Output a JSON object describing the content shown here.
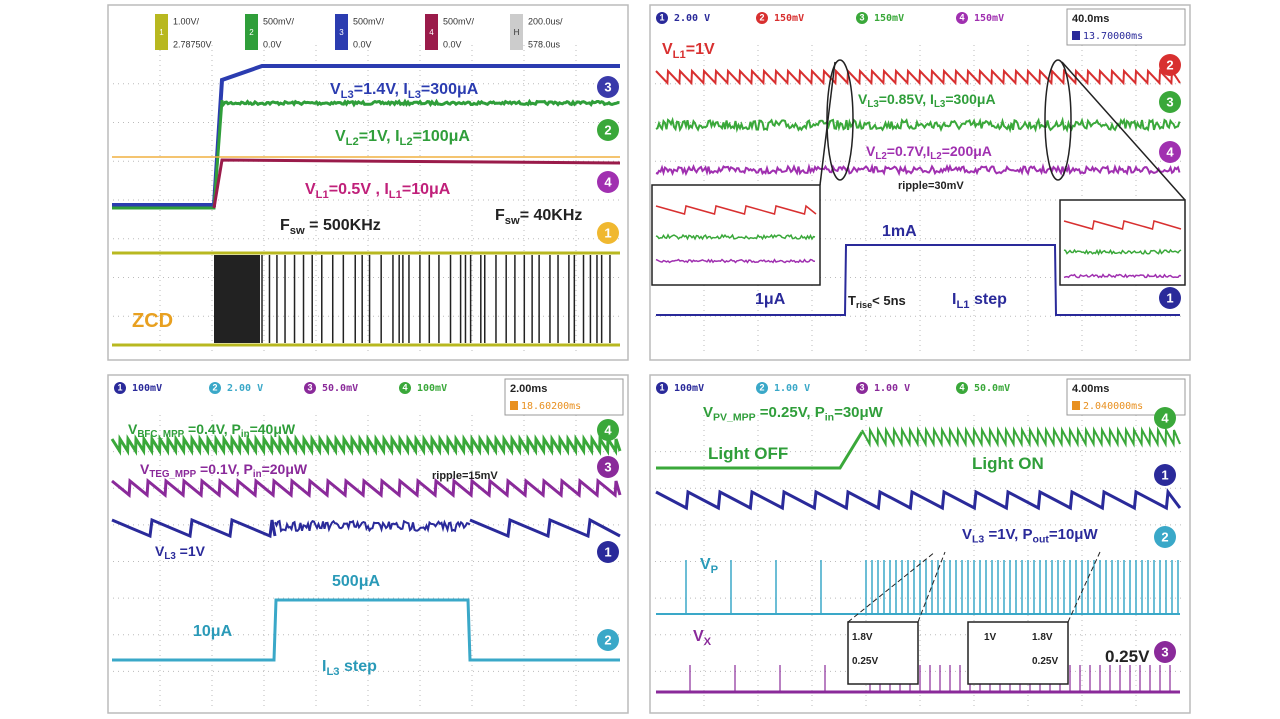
{
  "panels": [
    {
      "channels": [
        {
          "id": "1",
          "scale": "1.00V/",
          "offset": "2.78750V",
          "color": "#b8b820"
        },
        {
          "id": "2",
          "scale": "500mV/",
          "offset": "0.0V",
          "color": "#2f9e3a"
        },
        {
          "id": "3",
          "scale": "500mV/",
          "offset": "0.0V",
          "color": "#2b3cb0"
        },
        {
          "id": "4",
          "scale": "500mV/",
          "offset": "0.0V",
          "color": "#9a1b4a"
        }
      ],
      "timebase": {
        "id": "H",
        "scale": "200.0us/",
        "offset": "578.0us"
      },
      "markers": [
        "3",
        "2",
        "4",
        "1"
      ],
      "annotations": [
        [
          "V",
          "L3",
          "=1.4V, I",
          "L3",
          "=300μA"
        ],
        [
          "V",
          "L2",
          "=1V, I",
          "L2",
          "=100μA"
        ],
        [
          "V",
          "L1",
          "=0.5V , I",
          "L1",
          "=10μA"
        ],
        [
          "F",
          "sw",
          " = 500KHz"
        ],
        [
          "F",
          "sw",
          "= 40KHz"
        ],
        [
          "ZCD"
        ]
      ]
    },
    {
      "channels": [
        {
          "id": "1",
          "scale": "2.00 V",
          "color": "#2a2a9a"
        },
        {
          "id": "2",
          "scale": "150mV",
          "color": "#d83030"
        },
        {
          "id": "3",
          "scale": "150mV",
          "color": "#3aa83a"
        },
        {
          "id": "4",
          "scale": "150mV",
          "color": "#a030b0"
        }
      ],
      "timebase": {
        "scale": "40.0ms",
        "offset": "13.70000ms"
      },
      "markers": [
        "2",
        "3",
        "4",
        "1"
      ],
      "annotations": [
        [
          "V",
          "L1",
          "=1V"
        ],
        [
          "V",
          "L3",
          "=0.85V, I",
          "L3",
          "=300μA"
        ],
        [
          "V",
          "L2",
          "=0.7V,I",
          "L2",
          "=200μA"
        ],
        [
          "ripple=30mV"
        ],
        [
          "1mA"
        ],
        [
          "1μA"
        ],
        [
          "T",
          "rise",
          "< 5ns"
        ],
        [
          "I",
          "L1",
          " step"
        ]
      ]
    },
    {
      "channels": [
        {
          "id": "1",
          "scale": "100mV",
          "color": "#2a2a9a"
        },
        {
          "id": "2",
          "scale": "2.00 V",
          "color": "#3aa8c8"
        },
        {
          "id": "3",
          "scale": "50.0mV",
          "color": "#8a2a9a"
        },
        {
          "id": "4",
          "scale": "100mV",
          "color": "#3aa83a"
        }
      ],
      "timebase": {
        "scale": "2.00ms",
        "offset": "18.60200ms"
      },
      "markers": [
        "4",
        "3",
        "1",
        "2"
      ],
      "annotations": [
        [
          "V",
          "BFC_MPP",
          " =0.4V, P",
          "in",
          "=40μW"
        ],
        [
          "V",
          "TEG_MPP",
          " =0.1V, P",
          "in",
          "=20μW"
        ],
        [
          "ripple=15mV"
        ],
        [
          "V",
          "L3",
          " =1V"
        ],
        [
          "500μA"
        ],
        [
          "10μA"
        ],
        [
          "I",
          "L3",
          " step"
        ]
      ]
    },
    {
      "channels": [
        {
          "id": "1",
          "scale": "100mV",
          "color": "#2a2a9a"
        },
        {
          "id": "2",
          "scale": "1.00 V",
          "color": "#3aa8c8"
        },
        {
          "id": "3",
          "scale": "1.00 V",
          "color": "#8a2a9a"
        },
        {
          "id": "4",
          "scale": "50.0mV",
          "color": "#3aa83a"
        }
      ],
      "timebase": {
        "scale": "4.00ms",
        "offset": "2.040000ms"
      },
      "markers": [
        "4",
        "1",
        "2",
        "3"
      ],
      "annotations": [
        [
          "V",
          "PV_MPP",
          " =0.25V, P",
          "in",
          "=30μW"
        ],
        [
          "Light OFF"
        ],
        [
          "Light ON"
        ],
        [
          "V",
          "L3",
          " =1V, P",
          "out",
          "=10μW"
        ],
        [
          "V",
          "P"
        ],
        [
          "V",
          "X"
        ],
        [
          "1.8V"
        ],
        [
          "0.25V"
        ],
        [
          "1V"
        ],
        [
          "1.8V"
        ],
        [
          "0.25V"
        ],
        [
          "0.25V"
        ]
      ]
    }
  ]
}
